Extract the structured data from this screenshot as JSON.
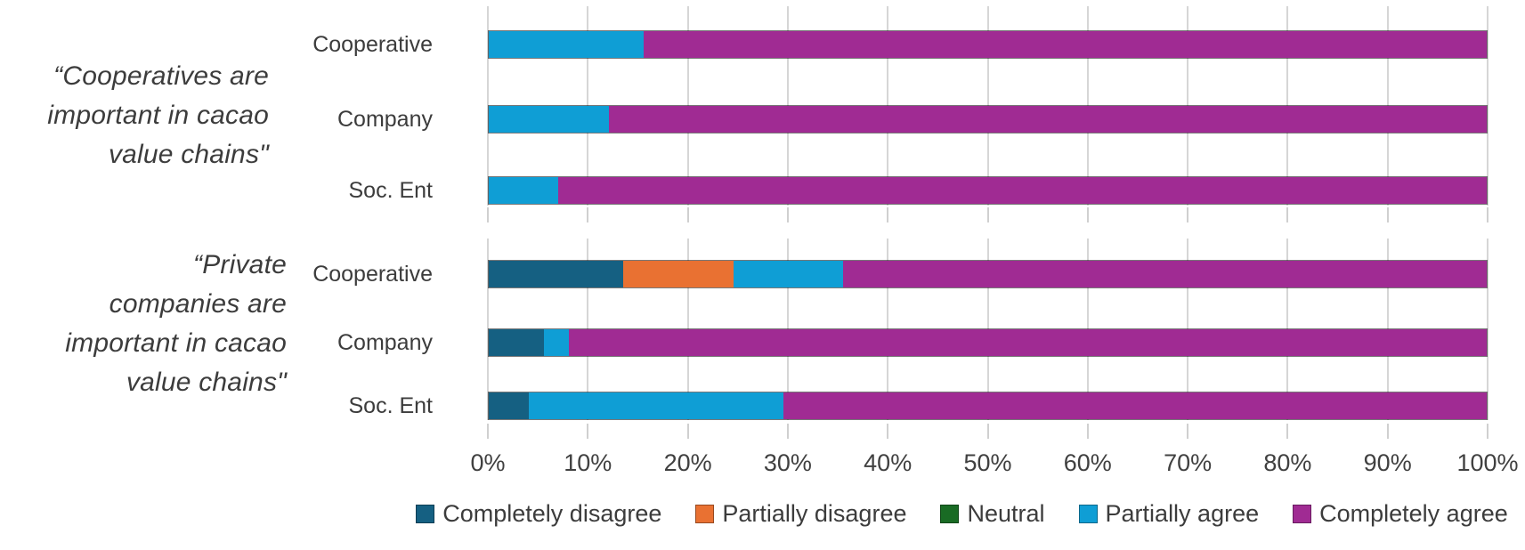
{
  "chart_data": {
    "type": "bar",
    "variant": "horizontal-stacked-100",
    "grid": true,
    "legend_position": "bottom",
    "x_axis": {
      "range": [
        0,
        100
      ],
      "unit": "%",
      "tick_labels": [
        "0%",
        "10%",
        "20%",
        "30%",
        "40%",
        "50%",
        "60%",
        "70%",
        "80%",
        "90%",
        "100%"
      ]
    },
    "legend": [
      {
        "label": "Completely disagree",
        "color": "#156082"
      },
      {
        "label": "Partially disagree",
        "color": "#E97132"
      },
      {
        "label": "Neutral",
        "color": "#196B24"
      },
      {
        "label": "Partially agree",
        "color": "#0F9ED5"
      },
      {
        "label": "Completely agree",
        "color": "#A02B93"
      }
    ],
    "groups": [
      {
        "title": "“Cooperatives are important in cacao value chains\"",
        "title_lines": [
          "“Cooperatives are",
          "important in cacao",
          "value chains\""
        ],
        "rows": [
          {
            "category": "Cooperative",
            "values": [
              0,
              0,
              0,
              15.5,
              84.5
            ]
          },
          {
            "category": "Company",
            "values": [
              0,
              0,
              0,
              12,
              88
            ]
          },
          {
            "category": "Soc. Ent",
            "values": [
              0,
              0,
              0,
              7,
              93
            ]
          }
        ]
      },
      {
        "title": "“Private companies are important in cacao value chains\"",
        "title_lines": [
          "“Private",
          "companies are",
          "important in cacao",
          "value chains\""
        ],
        "rows": [
          {
            "category": "Cooperative",
            "values": [
              13.5,
              11,
              0,
              11,
              64.5
            ]
          },
          {
            "category": "Company",
            "values": [
              5.5,
              0,
              0,
              2.5,
              92
            ]
          },
          {
            "category": "Soc. Ent",
            "values": [
              4,
              0,
              0,
              25.5,
              70.5
            ]
          }
        ]
      }
    ]
  }
}
